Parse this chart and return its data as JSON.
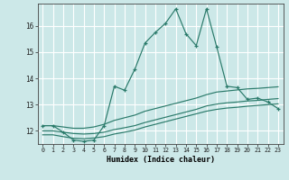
{
  "background_color": "#cce8e8",
  "grid_color": "#b0d0d0",
  "line_color": "#2a7a6a",
  "xlabel": "Humidex (Indice chaleur)",
  "xlim": [
    -0.5,
    23.5
  ],
  "ylim": [
    11.5,
    16.85
  ],
  "yticks": [
    12,
    13,
    14,
    15,
    16
  ],
  "xticks": [
    0,
    1,
    2,
    3,
    4,
    5,
    6,
    7,
    8,
    9,
    10,
    11,
    12,
    13,
    14,
    15,
    16,
    17,
    18,
    19,
    20,
    21,
    22,
    23
  ],
  "main_line_x": [
    0,
    1,
    2,
    3,
    4,
    5,
    6,
    7,
    8,
    9,
    10,
    11,
    12,
    13,
    14,
    15,
    16,
    17,
    18,
    19,
    20,
    21,
    22,
    23
  ],
  "main_line_y": [
    12.2,
    12.2,
    11.95,
    11.65,
    11.6,
    11.65,
    12.2,
    13.7,
    13.55,
    14.35,
    15.35,
    15.75,
    16.1,
    16.65,
    15.7,
    15.25,
    16.65,
    15.2,
    13.7,
    13.65,
    13.2,
    13.25,
    13.1,
    12.85
  ],
  "line2_x": [
    0,
    1,
    2,
    3,
    4,
    5,
    6,
    7,
    8,
    9,
    10,
    11,
    12,
    13,
    14,
    15,
    16,
    17,
    18,
    19,
    20,
    21,
    22,
    23
  ],
  "line2_y": [
    12.2,
    12.2,
    12.15,
    12.1,
    12.1,
    12.15,
    12.25,
    12.4,
    12.5,
    12.6,
    12.75,
    12.85,
    12.95,
    13.05,
    13.15,
    13.25,
    13.38,
    13.48,
    13.52,
    13.56,
    13.6,
    13.62,
    13.65,
    13.68
  ],
  "line3_x": [
    0,
    1,
    2,
    3,
    4,
    5,
    6,
    7,
    8,
    9,
    10,
    11,
    12,
    13,
    14,
    15,
    16,
    17,
    18,
    19,
    20,
    21,
    22,
    23
  ],
  "line3_y": [
    12.0,
    12.0,
    11.95,
    11.9,
    11.88,
    11.9,
    11.95,
    12.05,
    12.12,
    12.2,
    12.32,
    12.42,
    12.52,
    12.62,
    12.72,
    12.82,
    12.95,
    13.02,
    13.07,
    13.1,
    13.14,
    13.16,
    13.2,
    13.23
  ],
  "line4_x": [
    0,
    1,
    2,
    3,
    4,
    5,
    6,
    7,
    8,
    9,
    10,
    11,
    12,
    13,
    14,
    15,
    16,
    17,
    18,
    19,
    20,
    21,
    22,
    23
  ],
  "line4_y": [
    11.85,
    11.85,
    11.78,
    11.72,
    11.7,
    11.73,
    11.78,
    11.88,
    11.95,
    12.03,
    12.15,
    12.25,
    12.35,
    12.45,
    12.55,
    12.65,
    12.75,
    12.82,
    12.87,
    12.9,
    12.94,
    12.97,
    13.0,
    13.03
  ]
}
